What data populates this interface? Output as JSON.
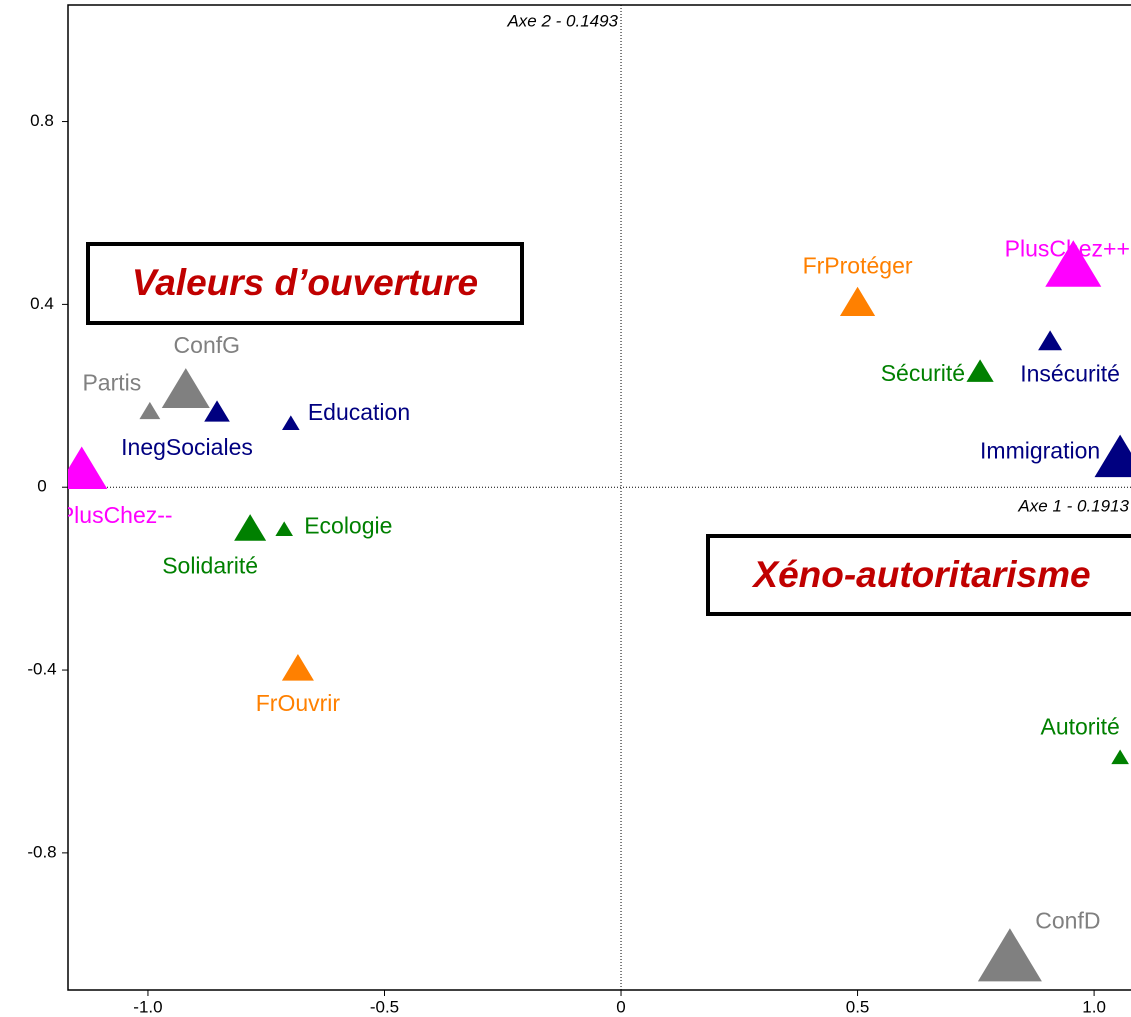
{
  "chart_data": {
    "type": "scatter",
    "x_label": "Axe 1 - 0.1913",
    "y_label": "Axe 2 - 0.1493",
    "annotations": [
      "Valeurs d’ouverture",
      "Xéno-autoritarisme"
    ],
    "labels": [
      "PlusChez++",
      "FrProtéger",
      "Insécurité",
      "Sécurité",
      "Immigration",
      "Autorité",
      "ConfD",
      "ConfG",
      "Partis",
      "InegSociales",
      "Education",
      "PlusChez--",
      "Solidarité",
      "Ecologie",
      "FrOuvrir"
    ],
    "x": [
      0.956,
      0.5,
      0.907,
      0.759,
      1.055,
      1.055,
      0.822,
      -0.92,
      -0.996,
      -0.854,
      -0.698,
      -1.14,
      -0.784,
      -0.712,
      -0.683
    ],
    "y": [
      0.479,
      0.4,
      0.317,
      0.25,
      0.059,
      -0.593,
      -1.035,
      0.208,
      0.164,
      0.162,
      0.138,
      0.033,
      -0.094,
      -0.094,
      -0.4
    ],
    "sizes": [
      3.5,
      2.2,
      1.5,
      1.7,
      3.2,
      1.1,
      4,
      3,
      1.3,
      1.6,
      1.1,
      3.2,
      2,
      1.1,
      2
    ],
    "colors": [
      "#ff00ff",
      "#ff8000",
      "#000080",
      "#008000",
      "#000080",
      "#008000",
      "#808080",
      "#808080",
      "#808080",
      "#000080",
      "#000080",
      "#ff00ff",
      "#008000",
      "#008000",
      "#ff8000"
    ],
    "xlim": [
      -1.169,
      1.078
    ],
    "ylim": [
      -1.1,
      1.055
    ],
    "xticks": [
      {
        "value": -1.0,
        "label": "-1.0"
      },
      -0.5,
      0,
      0.5,
      {
        "value": 1.0,
        "label": "1.0"
      }
    ],
    "yticks": [
      0.8,
      0.4,
      0,
      -0.4,
      -0.8
    ]
  }
}
